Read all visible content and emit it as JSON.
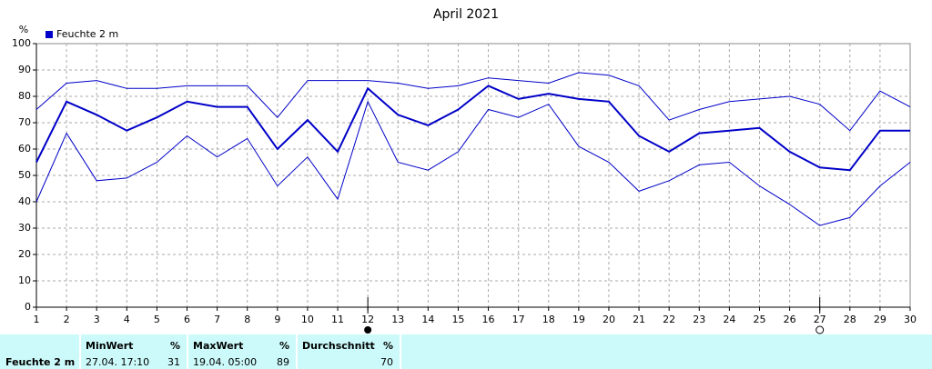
{
  "chart_data": {
    "type": "line",
    "title": "April 2021",
    "y_unit": "%",
    "x": [
      1,
      2,
      3,
      4,
      5,
      6,
      7,
      8,
      9,
      10,
      11,
      12,
      13,
      14,
      15,
      16,
      17,
      18,
      19,
      20,
      21,
      22,
      23,
      24,
      25,
      26,
      27,
      28,
      29,
      30
    ],
    "xlim": [
      1,
      30
    ],
    "xticks": [
      1,
      2,
      3,
      4,
      5,
      6,
      7,
      8,
      9,
      10,
      11,
      12,
      13,
      14,
      15,
      16,
      17,
      18,
      19,
      20,
      21,
      22,
      23,
      24,
      25,
      26,
      27,
      28,
      29,
      30
    ],
    "ylim": [
      0,
      100
    ],
    "yticks": [
      0,
      10,
      20,
      30,
      40,
      50,
      60,
      70,
      80,
      90,
      100
    ],
    "grid": true,
    "legend": "top-left",
    "series": [
      {
        "name": "Feuchte  2 m",
        "color": "#0000c8",
        "values": [
          55,
          78,
          73,
          67,
          72,
          78,
          76,
          76,
          60,
          71,
          59,
          83,
          73,
          69,
          75,
          84,
          79,
          81,
          79,
          78,
          65,
          59,
          66,
          67,
          68,
          59,
          53,
          52,
          67,
          67
        ]
      },
      {
        "color": "#0000c8",
        "values": [
          75,
          85,
          86,
          83,
          83,
          84,
          84,
          84,
          72,
          86,
          86,
          86,
          85,
          83,
          84,
          87,
          86,
          85,
          89,
          88,
          84,
          71,
          75,
          78,
          79,
          80,
          77,
          67,
          82,
          76
        ]
      },
      {
        "color": "#0000c8",
        "values": [
          40,
          66,
          48,
          49,
          55,
          65,
          57,
          64,
          46,
          57,
          41,
          78,
          55,
          52,
          59,
          75,
          72,
          77,
          61,
          55,
          44,
          48,
          54,
          55,
          46,
          39,
          31,
          34,
          46,
          55
        ]
      }
    ]
  },
  "summary": {
    "label": "Feuchte  2 m",
    "columns": [
      {
        "title": "MinWert",
        "unit": "%",
        "time": "27.04.  17:10",
        "value": 31
      },
      {
        "title": "MaxWert",
        "unit": "%",
        "time": "19.04.  05:00",
        "value": 89
      },
      {
        "title": "Durchschnitt",
        "unit": "%",
        "value": 70
      }
    ]
  }
}
